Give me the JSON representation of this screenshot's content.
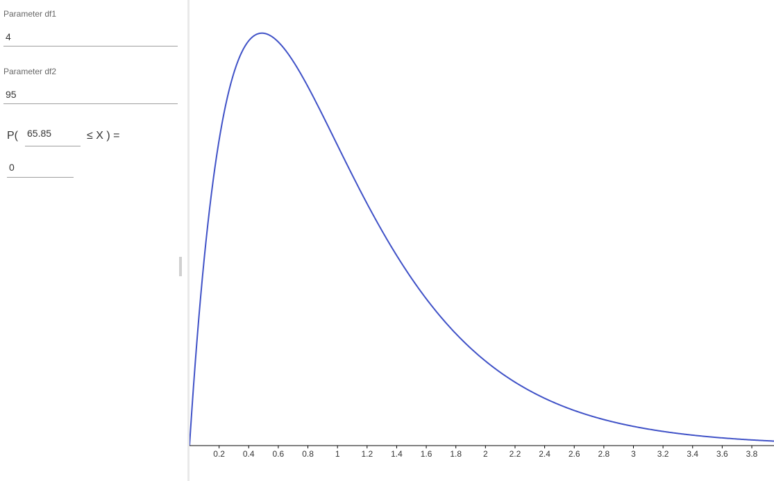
{
  "params": {
    "df1": {
      "label": "Parameter df1",
      "value": "4"
    },
    "df2": {
      "label": "Parameter df2",
      "value": "95"
    }
  },
  "probability": {
    "prefix": "P(",
    "lower_value": "65.85",
    "suffix": "≤ X ) =",
    "result": "0"
  },
  "colors": {
    "curve": "#3f51c7",
    "axis": "#000000"
  },
  "chart_data": {
    "type": "line",
    "title": "",
    "xlabel": "",
    "ylabel": "",
    "distribution": "F",
    "df1": 4,
    "df2": 95,
    "xlim": [
      0,
      3.95
    ],
    "ylim": [
      0,
      0.75
    ],
    "x_ticks": [
      0.2,
      0.4,
      0.6,
      0.8,
      1,
      1.2,
      1.4,
      1.6,
      1.8,
      2,
      2.2,
      2.4,
      2.6,
      2.8,
      3,
      3.2,
      3.4,
      3.6,
      3.8
    ],
    "x_tick_labels": [
      "0.2",
      "0.4",
      "0.6",
      "0.8",
      "1",
      "1.2",
      "1.4",
      "1.6",
      "1.8",
      "2",
      "2.2",
      "2.4",
      "2.6",
      "2.8",
      "3",
      "3.2",
      "3.4",
      "3.6",
      "3.8"
    ]
  }
}
